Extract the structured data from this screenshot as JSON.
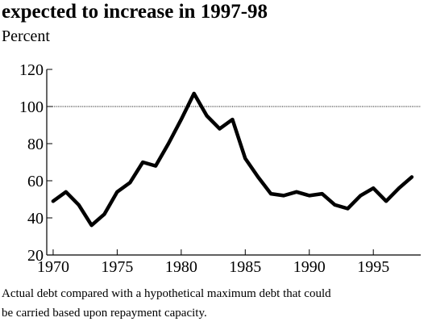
{
  "title": "expected to increase in 1997-98",
  "caption": [
    "Actual debt compared with a hypothetical maximum debt that could",
    "be carried based upon repayment capacity."
  ],
  "chart_data": {
    "type": "line",
    "ylabel": "Percent",
    "xlabel": "",
    "xlim": [
      1969.5,
      1998.7
    ],
    "ylim": [
      20,
      120
    ],
    "x_ticks": [
      1970,
      1975,
      1980,
      1985,
      1990,
      1995
    ],
    "y_ticks": [
      20,
      40,
      60,
      80,
      100,
      120
    ],
    "reference_line": {
      "y": 100,
      "style": "dotted"
    },
    "grid": false,
    "series": [
      {
        "color": "#000000",
        "x": [
          1970,
          1971,
          1972,
          1973,
          1974,
          1975,
          1976,
          1977,
          1978,
          1979,
          1980,
          1981,
          1982,
          1983,
          1984,
          1985,
          1986,
          1987,
          1988,
          1989,
          1990,
          1991,
          1992,
          1993,
          1994,
          1995,
          1996,
          1997,
          1998
        ],
        "values": [
          49,
          54,
          47,
          36,
          42,
          54,
          59,
          70,
          68,
          80,
          93,
          107,
          95,
          88,
          93,
          72,
          62,
          53,
          52,
          54,
          52,
          53,
          47,
          45,
          52,
          56,
          49,
          56,
          62
        ]
      }
    ]
  }
}
